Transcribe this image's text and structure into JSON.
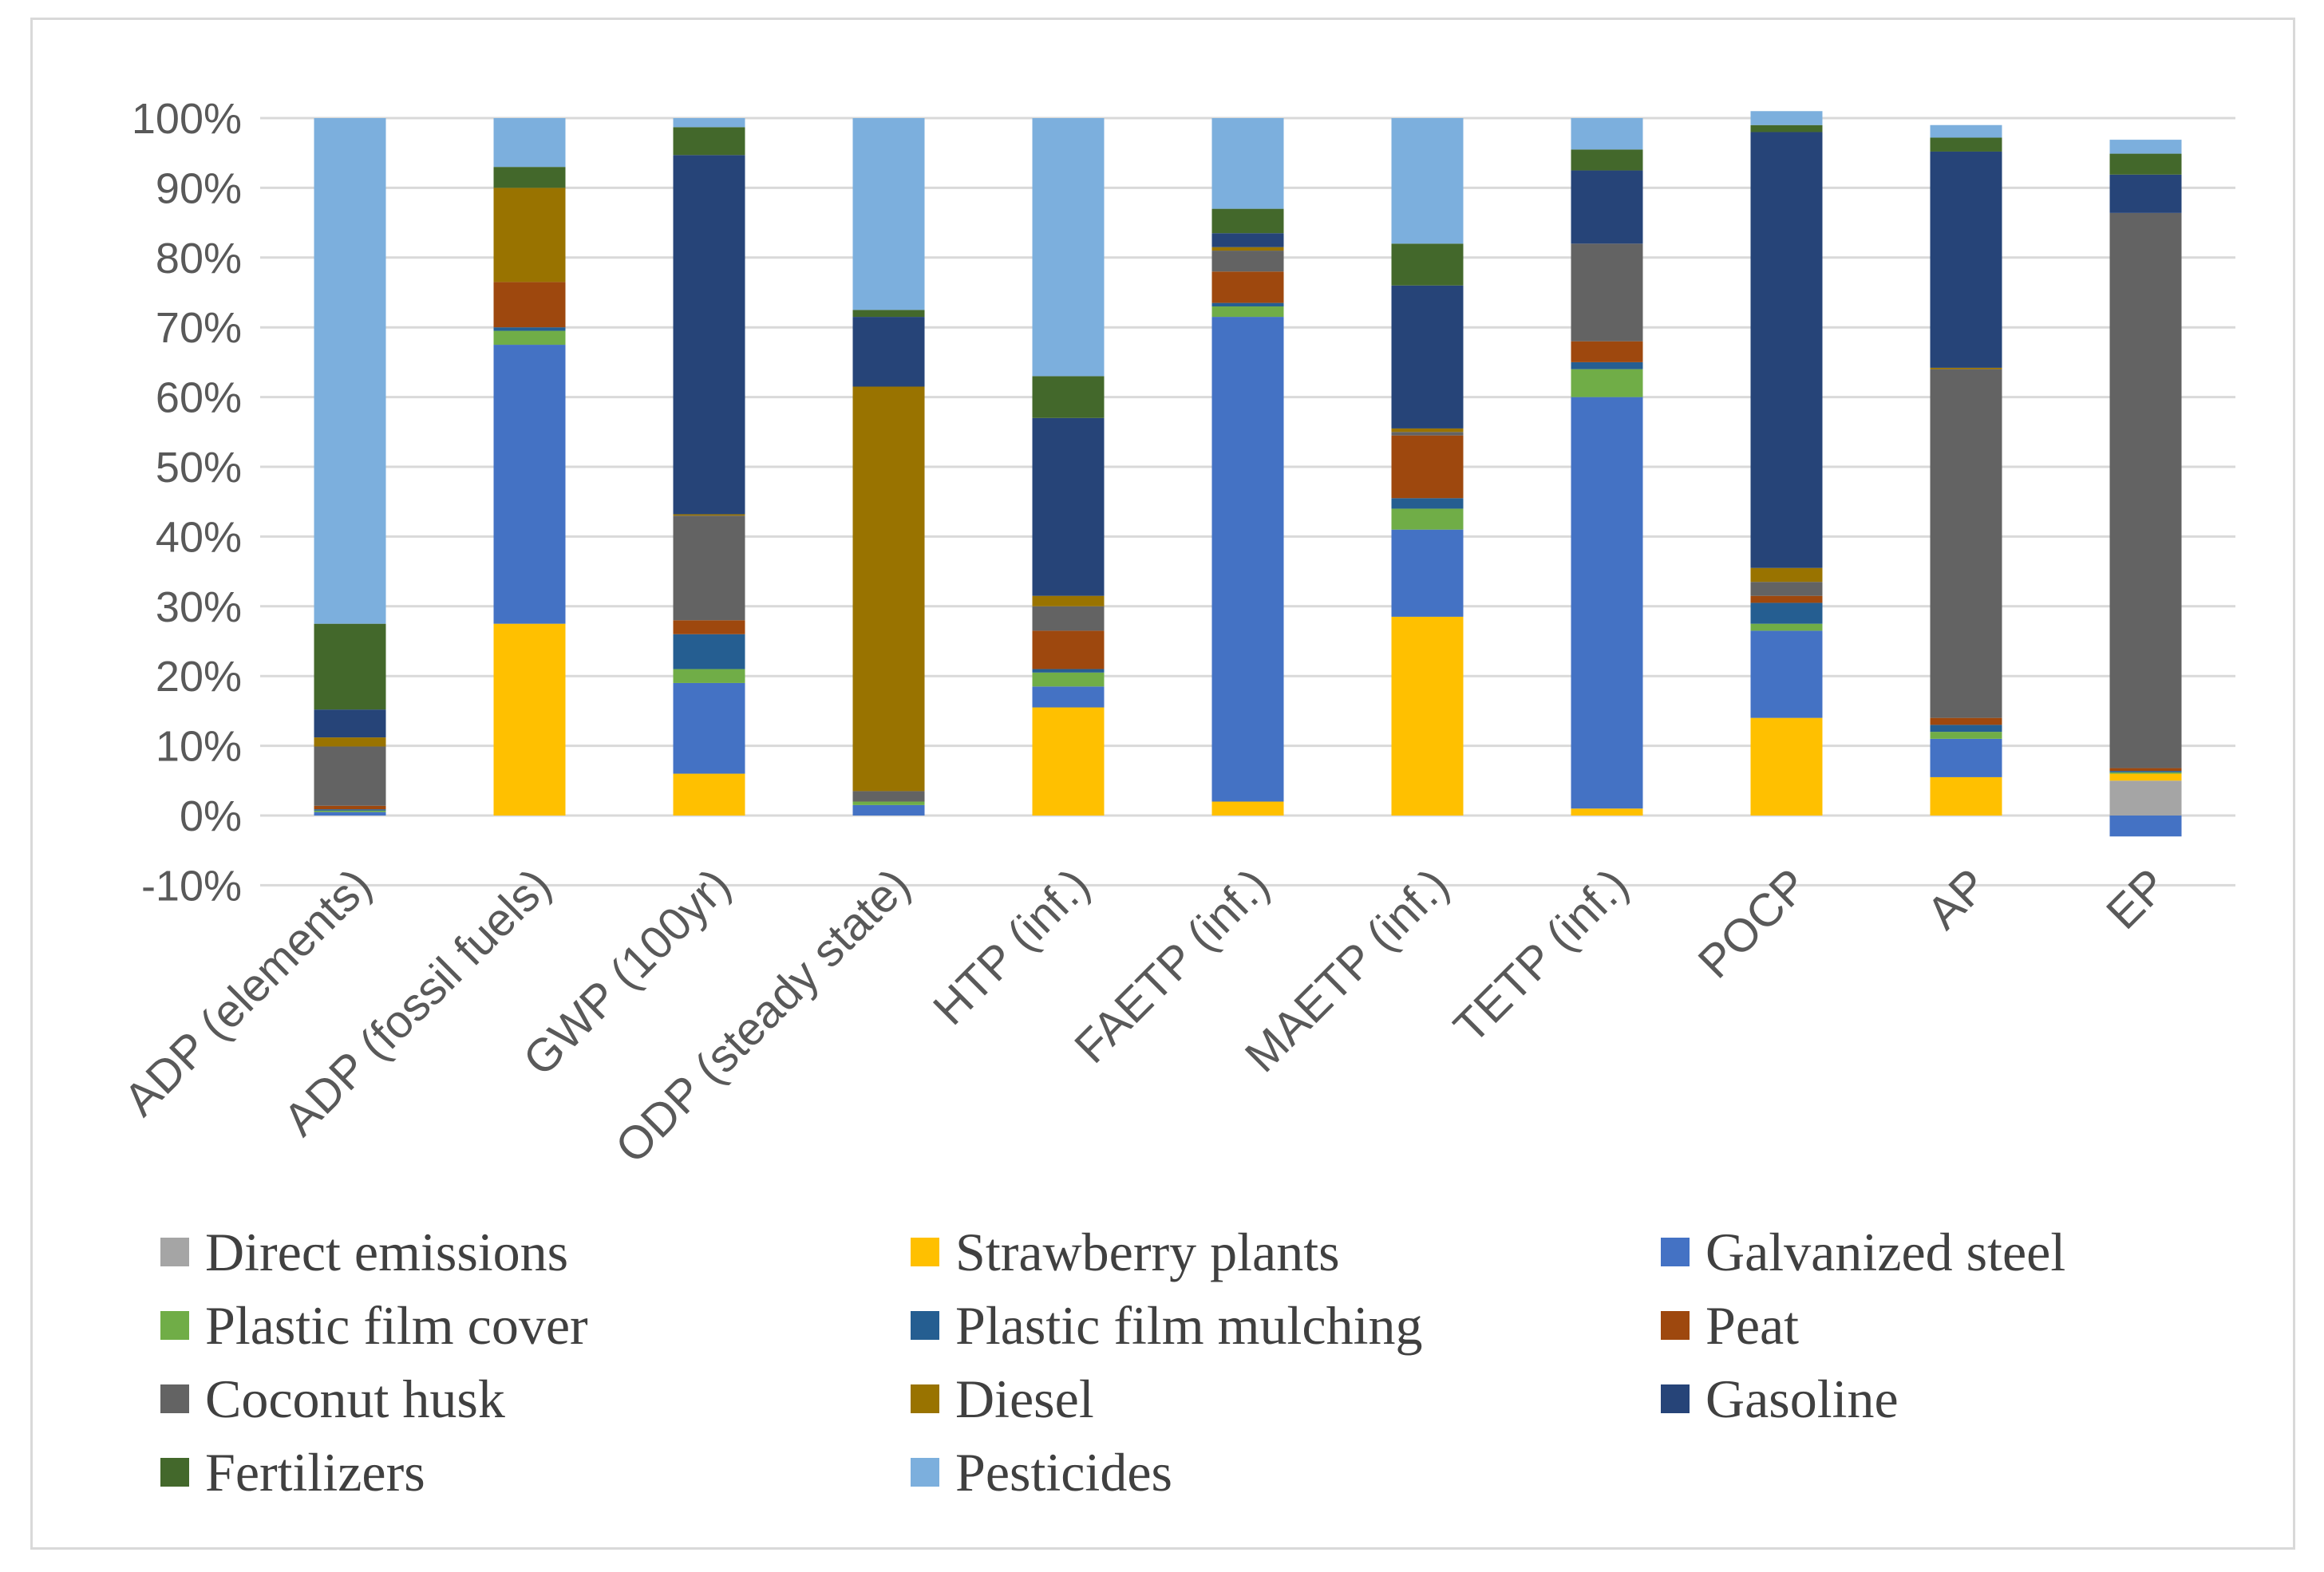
{
  "chart_data": {
    "type": "bar",
    "stacked": true,
    "title": "",
    "xlabel": "",
    "ylabel": "",
    "ylim": [
      -0.1,
      1.0
    ],
    "yticks": [
      -0.1,
      0.0,
      0.1,
      0.2,
      0.3,
      0.4,
      0.5,
      0.6,
      0.7,
      0.8,
      0.9,
      1.0
    ],
    "ytick_labels": [
      "-10%",
      "0%",
      "10%",
      "20%",
      "30%",
      "40%",
      "50%",
      "60%",
      "70%",
      "80%",
      "90%",
      "100%"
    ],
    "grid": true,
    "legend_position": "bottom",
    "categories": [
      "ADP (elements)",
      "ADP (fossil fuels)",
      "GWP (100yr)",
      "ODP (steady state)",
      "HTP (inf.)",
      "FAETP (inf.)",
      "MAETP (inf.)",
      "TETP (inf.)",
      "POCP",
      "AP",
      "EP"
    ],
    "series": [
      {
        "name": "Direct emissions",
        "color": "#a5a5a5",
        "values": [
          0,
          0,
          0,
          0,
          0,
          0,
          0,
          0,
          0,
          0,
          0.05
        ]
      },
      {
        "name": "Strawberry plants",
        "color": "#ffc000",
        "values": [
          0,
          0.275,
          0.06,
          0,
          0.155,
          0.02,
          0.285,
          0.01,
          0.14,
          0.055,
          0.01
        ]
      },
      {
        "name": "Galvanized steel",
        "color": "#4472c4",
        "values": [
          0.005,
          0.4,
          0.13,
          0.015,
          0.03,
          0.695,
          0.125,
          0.59,
          0.125,
          0.055,
          -0.03
        ]
      },
      {
        "name": "Plastic film cover",
        "color": "#70ad47",
        "values": [
          0.002,
          0.02,
          0.02,
          0.005,
          0.02,
          0.015,
          0.03,
          0.04,
          0.01,
          0.01,
          0.002
        ]
      },
      {
        "name": "Plastic film mulching",
        "color": "#255e91",
        "values": [
          0.002,
          0.005,
          0.05,
          0,
          0.005,
          0.005,
          0.015,
          0.01,
          0.03,
          0.01,
          0.002
        ]
      },
      {
        "name": "Peat",
        "color": "#9e480e",
        "values": [
          0.005,
          0.065,
          0.02,
          0,
          0.055,
          0.045,
          0.09,
          0.03,
          0.01,
          0.01,
          0.004
        ]
      },
      {
        "name": "Coconut husk",
        "color": "#636363",
        "values": [
          0.085,
          0,
          0.15,
          0.015,
          0.035,
          0.03,
          0.005,
          0.14,
          0.02,
          0.5,
          0.796
        ]
      },
      {
        "name": "Diesel",
        "color": "#997300",
        "values": [
          0.013,
          0.135,
          0.002,
          0.58,
          0.015,
          0.005,
          0.005,
          0,
          0.02,
          0.002,
          0
        ]
      },
      {
        "name": "Gasoline",
        "color": "#264478",
        "values": [
          0.04,
          0,
          0.515,
          0.1,
          0.255,
          0.02,
          0.205,
          0.105,
          0.625,
          0.31,
          0.055
        ]
      },
      {
        "name": "Fertilizers",
        "color": "#43682b",
        "values": [
          0.123,
          0.03,
          0.04,
          0.01,
          0.06,
          0.035,
          0.06,
          0.03,
          0.01,
          0.02,
          0.03
        ]
      },
      {
        "name": "Pesticides",
        "color": "#7cafdd",
        "values": [
          0.725,
          0.07,
          0.013,
          0.275,
          0.37,
          0.13,
          0.18,
          0.045,
          0.02,
          0.018,
          0.02
        ]
      }
    ]
  }
}
